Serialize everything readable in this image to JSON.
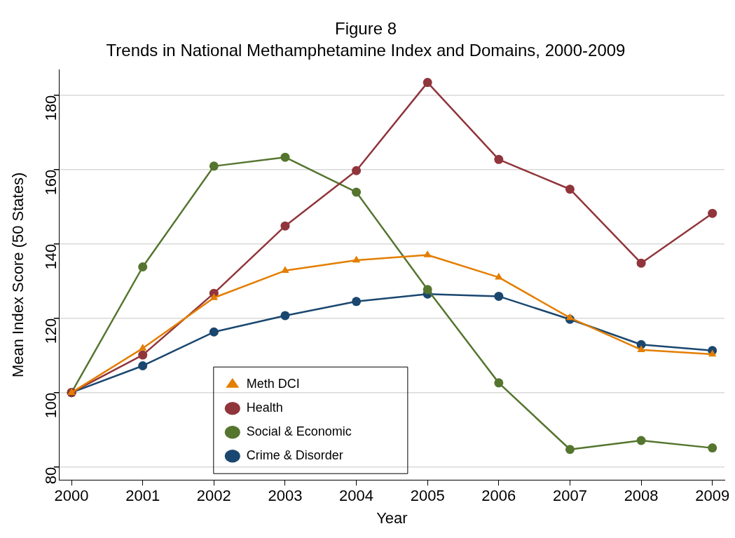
{
  "chart_data": {
    "type": "line",
    "title": "Figure 8",
    "subtitle": "Trends in National Methamphetamine Index and Domains, 2000-2009",
    "xlabel": "Year",
    "ylabel": "Mean Index Score (50 States)",
    "x": [
      2000,
      2001,
      2002,
      2003,
      2004,
      2005,
      2006,
      2007,
      2008,
      2009
    ],
    "xlim": [
      1999.83,
      2009.17
    ],
    "xticks": [
      2000,
      2001,
      2002,
      2003,
      2004,
      2005,
      2006,
      2007,
      2008,
      2009
    ],
    "ylim": [
      76.5,
      186.8
    ],
    "yticks": [
      80,
      100,
      120,
      140,
      160,
      180
    ],
    "grid": "y",
    "legend": "bottom left",
    "line_style": "solid",
    "series": [
      {
        "name": "Meth DCI",
        "color": "#e37e00",
        "marker": "triangle",
        "values": [
          100,
          111.9,
          125.5,
          132.8,
          135.6,
          137.0,
          131.0,
          120.1,
          111.5,
          110.3
        ]
      },
      {
        "name": "Health",
        "color": "#90353b",
        "marker": "circle",
        "values": [
          100,
          110.1,
          126.7,
          144.8,
          159.7,
          183.4,
          162.7,
          154.7,
          134.8,
          148.2
        ]
      },
      {
        "name": "Social & Economic",
        "color": "#55752f",
        "marker": "circle",
        "values": [
          100,
          133.8,
          160.9,
          163.3,
          153.9,
          127.7,
          102.6,
          84.7,
          87.1,
          85.1
        ]
      },
      {
        "name": "Crime & Disorder",
        "color": "#1a476f",
        "marker": "circle",
        "values": [
          100,
          107.2,
          116.3,
          120.7,
          124.5,
          126.5,
          125.9,
          119.7,
          112.9,
          111.3
        ]
      }
    ]
  }
}
